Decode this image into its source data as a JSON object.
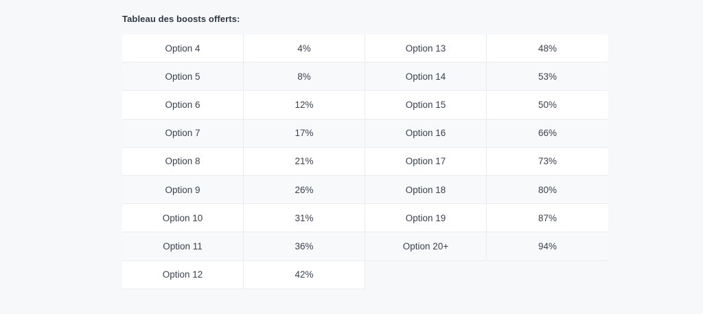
{
  "title": "Tableau des boosts offerts:",
  "colors": {
    "page_bg": "#f7f8f9",
    "row_white": "#ffffff",
    "row_alt": "#f8f9fa",
    "border": "#e9ebef",
    "text": "#3a414e",
    "title_text": "#303845"
  },
  "table": {
    "left_rows": [
      {
        "label": "Option 4",
        "value": "4%"
      },
      {
        "label": "Option 5",
        "value": "8%"
      },
      {
        "label": "Option 6",
        "value": "12%"
      },
      {
        "label": "Option 7",
        "value": "17%"
      },
      {
        "label": "Option 8",
        "value": "21%"
      },
      {
        "label": "Option 9",
        "value": "26%"
      },
      {
        "label": "Option 10",
        "value": "31%"
      },
      {
        "label": "Option 11",
        "value": "36%"
      },
      {
        "label": "Option 12",
        "value": "42%"
      }
    ],
    "right_rows": [
      {
        "label": "Option 13",
        "value": "48%"
      },
      {
        "label": "Option 14",
        "value": "53%"
      },
      {
        "label": "Option 15",
        "value": "50%"
      },
      {
        "label": "Option 16",
        "value": "66%"
      },
      {
        "label": "Option 17",
        "value": "73%"
      },
      {
        "label": "Option 18",
        "value": "80%"
      },
      {
        "label": "Option 19",
        "value": "87%"
      },
      {
        "label": "Option 20+",
        "value": "94%"
      }
    ]
  }
}
